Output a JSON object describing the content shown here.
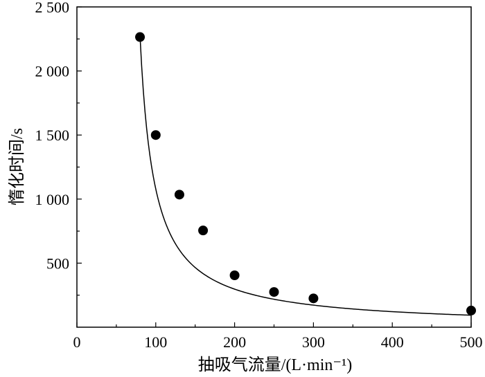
{
  "chart_data": {
    "type": "scatter",
    "title": "",
    "xlabel": "抽吸气流量/(L·min⁻¹)",
    "ylabel": "惰化时间/s",
    "xlim": [
      0,
      500
    ],
    "ylim": [
      0,
      2500
    ],
    "x_ticks": [
      0,
      100,
      200,
      300,
      400,
      500
    ],
    "x_tick_labels": [
      "0",
      "100",
      "200",
      "300",
      "400",
      "500"
    ],
    "y_ticks": [
      500,
      1000,
      1500,
      2000,
      2500
    ],
    "y_tick_labels": [
      "500",
      "1 000",
      "1 500",
      "2 000",
      "2 500"
    ],
    "grid": false,
    "legend": "none",
    "series": [
      {
        "type": "scatter",
        "x": [
          80,
          100,
          130,
          160,
          200,
          250,
          300,
          500
        ],
        "y": [
          2265,
          1500,
          1035,
          755,
          405,
          275,
          225,
          130
        ]
      }
    ],
    "fit_curve": {
      "type": "line",
      "model": "y = a / (x - b)",
      "a": 41000,
      "b": 62,
      "x_range": [
        80,
        500
      ]
    },
    "colors": {
      "marker": "#000000",
      "line": "#000000",
      "axes": "#000000"
    }
  }
}
